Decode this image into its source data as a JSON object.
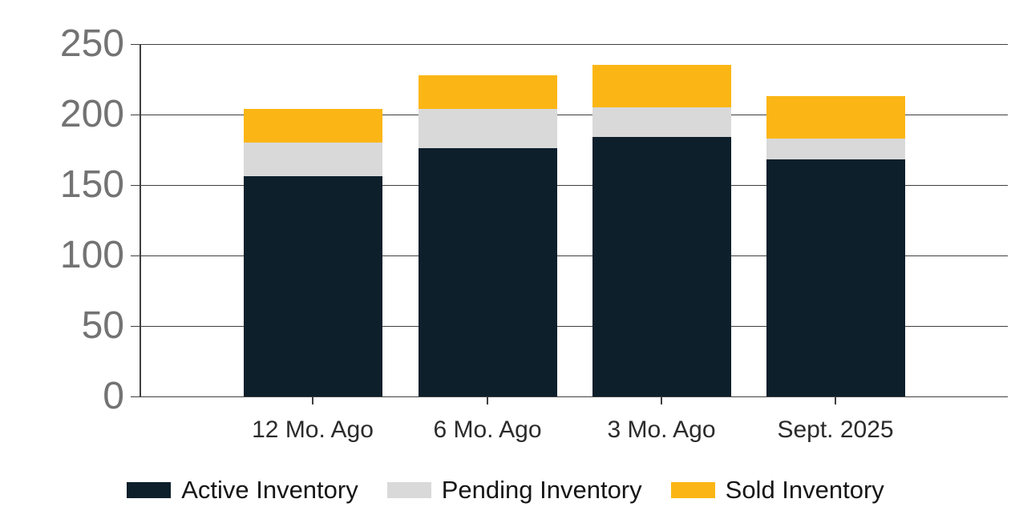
{
  "chart_data": {
    "type": "bar",
    "stacked": true,
    "title": "",
    "xlabel": "",
    "ylabel": "",
    "categories": [
      "12 Mo. Ago",
      "6 Mo. Ago",
      "3 Mo. Ago",
      "Sept. 2025"
    ],
    "series": [
      {
        "name": "Active Inventory",
        "color": "#0d1f2b",
        "values": [
          156,
          176,
          184,
          168
        ]
      },
      {
        "name": "Pending Inventory",
        "color": "#d9d9d9",
        "values": [
          24,
          28,
          21,
          15
        ]
      },
      {
        "name": "Sold Inventory",
        "color": "#fbb615",
        "values": [
          24,
          24,
          30,
          30
        ]
      }
    ],
    "stacked_totals": [
      204,
      228,
      235,
      213
    ],
    "y_ticks": [
      0,
      50,
      100,
      150,
      200,
      250
    ],
    "ylim": [
      0,
      250
    ],
    "grid": true,
    "legend_position": "bottom"
  },
  "colors": {
    "background": "#ffffff",
    "grid_line": "#3f3f3f",
    "y_tick_label": "#737373",
    "x_tick_label": "#2b2b2b",
    "legend_text": "#161616"
  }
}
